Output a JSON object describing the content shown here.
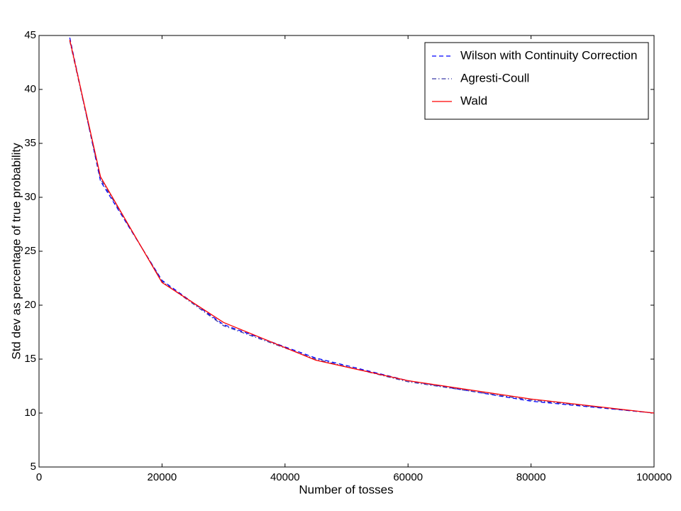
{
  "chart_data": {
    "type": "line",
    "x_label": "Number of tosses",
    "y_label": "Std dev as percentage of true probability",
    "x": [
      5000,
      10000,
      20000,
      30000,
      45000,
      60000,
      80000,
      100000
    ],
    "series": [
      {
        "name": "Wilson with Continuity Correction",
        "color": "#0000ff",
        "style": "dashed",
        "values": [
          44.8,
          31.5,
          22.3,
          18.2,
          15.1,
          13.0,
          11.1,
          10.0
        ]
      },
      {
        "name": "Agresti-Coull",
        "color": "#3a3aa8",
        "style": "dashdot",
        "values": [
          44.5,
          31.7,
          22.2,
          18.1,
          15.0,
          12.9,
          11.2,
          10.0
        ]
      },
      {
        "name": "Wald",
        "color": "#ff0000",
        "style": "solid",
        "values": [
          44.6,
          31.9,
          22.1,
          18.4,
          14.9,
          13.0,
          11.3,
          10.0
        ]
      }
    ],
    "xlim": [
      0,
      100000
    ],
    "xticks": [
      0,
      20000,
      40000,
      60000,
      80000,
      100000
    ],
    "ylim": [
      5,
      45
    ],
    "yticks": [
      5,
      10,
      15,
      20,
      25,
      30,
      35,
      40,
      45
    ],
    "legend": "upper right",
    "grid": false
  }
}
